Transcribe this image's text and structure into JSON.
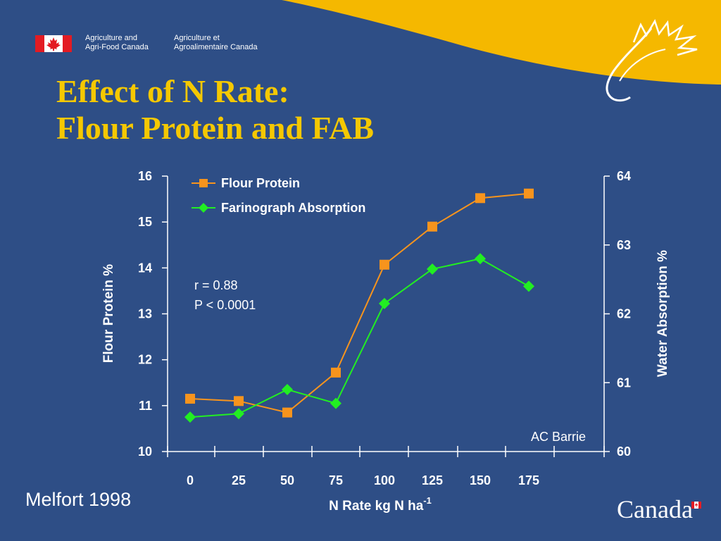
{
  "colors": {
    "background": "#2e4e86",
    "header_swoosh": "#f5b800",
    "title": "#f5c800",
    "flour_protein": "#f7941d",
    "absorption": "#22ee22",
    "text": "#ffffff"
  },
  "header": {
    "dept_en_line1": "Agriculture and",
    "dept_en_line2": "Agri-Food Canada",
    "dept_fr_line1": "Agriculture et",
    "dept_fr_line2": "Agroalimentaire Canada",
    "flag_icon": "canada-flag-icon",
    "signature_icon": "maple-leaf-signature-icon"
  },
  "title": {
    "line1": "Effect of N Rate:",
    "line2": "Flour Protein and FAB"
  },
  "footer": {
    "location_year": "Melfort 1998",
    "wordmark": "Canada"
  },
  "chart_data": {
    "type": "line",
    "x": [
      0,
      25,
      50,
      75,
      100,
      125,
      150,
      175
    ],
    "x_tick_labels": [
      "0",
      "25",
      "50",
      "75",
      "100",
      "125",
      "150",
      "175"
    ],
    "xlabel": "N Rate kg N ha",
    "xlabel_superscript": "-1",
    "ylabel_left": "Flour Protein %",
    "ylabel_right": "Water Absorption %",
    "ylim_left": [
      10,
      16
    ],
    "ylim_right": [
      60,
      64
    ],
    "yticks_left": [
      "10",
      "11",
      "12",
      "13",
      "14",
      "15",
      "16"
    ],
    "yticks_right": [
      "60",
      "61",
      "62",
      "63",
      "64"
    ],
    "series": [
      {
        "name": "Flour Protein",
        "axis": "left",
        "marker": "square",
        "values": [
          11.15,
          11.1,
          10.85,
          11.72,
          14.07,
          14.9,
          15.52,
          15.62
        ]
      },
      {
        "name": "Farinograph Absorption",
        "axis": "right",
        "marker": "diamond",
        "values": [
          60.5,
          60.55,
          60.9,
          60.7,
          62.15,
          62.65,
          62.8,
          62.4
        ]
      }
    ],
    "annotations": {
      "r": "r = 0.88",
      "p": "P < 0.0001",
      "cultivar": "AC Barrie"
    },
    "legend_position": "top-left",
    "grid": false
  }
}
